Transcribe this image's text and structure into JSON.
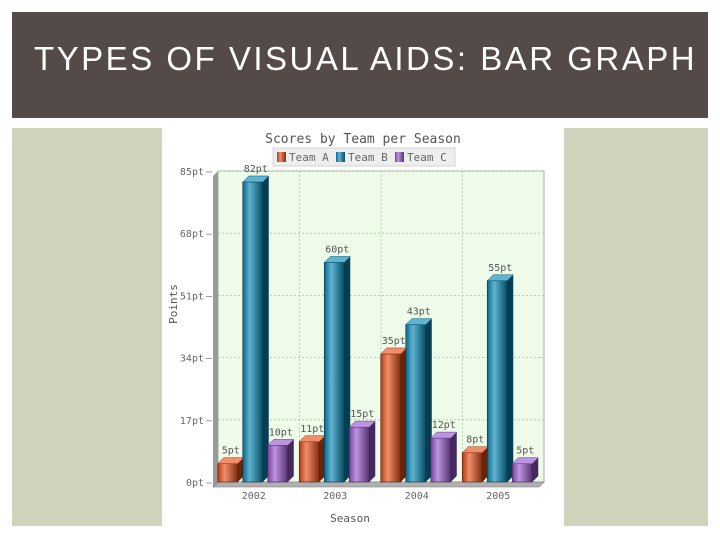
{
  "slide": {
    "title": "TYPES OF VISUAL AIDS: BAR GRAPH"
  },
  "colors": {
    "header_bg": "#544a47",
    "side_panel": "#cfd3bc",
    "plot_bg": "#eefbe8",
    "team_a": "#e8501a",
    "team_b": "#0a8ab8",
    "team_c": "#9a5ad0"
  },
  "chart_data": {
    "type": "bar",
    "title": "Scores by Team per Season",
    "xlabel": "Season",
    "ylabel": "Points",
    "categories": [
      "2002",
      "2003",
      "2004",
      "2005"
    ],
    "series": [
      {
        "name": "Team A",
        "values": [
          5,
          11,
          35,
          8
        ],
        "labels": [
          "5pt",
          "11pt",
          "35pt",
          "8pt"
        ]
      },
      {
        "name": "Team B",
        "values": [
          82,
          60,
          43,
          55
        ],
        "labels": [
          "82pt",
          "60pt",
          "43pt",
          "55pt"
        ]
      },
      {
        "name": "Team C",
        "values": [
          10,
          15,
          12,
          5
        ],
        "labels": [
          "10pt",
          "15pt",
          "12pt",
          "5pt"
        ]
      }
    ],
    "yticks": [
      0,
      17,
      34,
      51,
      68,
      85
    ],
    "ytick_labels": [
      "0pt",
      "17pt",
      "34pt",
      "51pt",
      "68pt",
      "85pt"
    ],
    "ylim": [
      0,
      85
    ],
    "grid": true,
    "legend_position": "top"
  }
}
